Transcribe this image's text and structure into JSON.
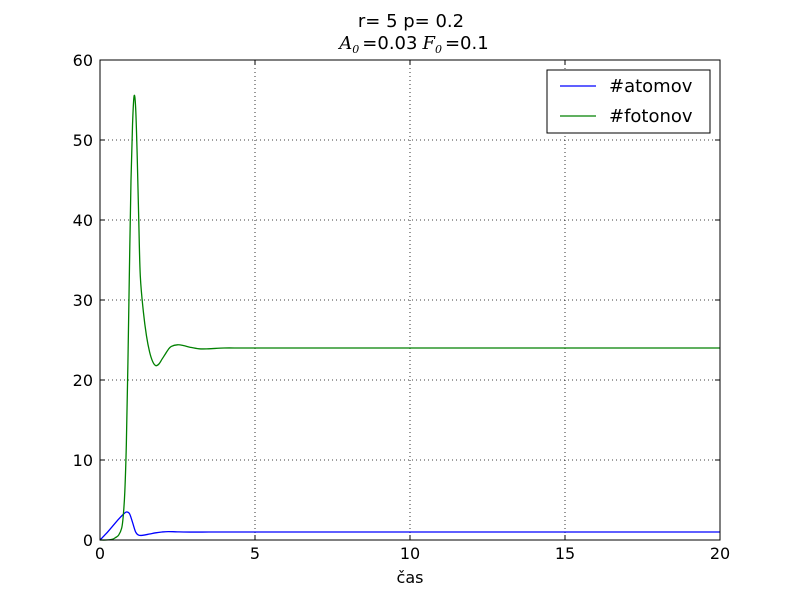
{
  "chart_data": {
    "type": "line",
    "title": "r= 5  p= 0.2",
    "subtitle": {
      "a_symbol": "A",
      "a_subscript": "0",
      "a_value": "=0.03",
      "f_symbol": "F",
      "f_subscript": "0",
      "f_value": "=0.1"
    },
    "xlabel": "čas",
    "ylabel": "",
    "xlim": [
      0,
      20
    ],
    "ylim": [
      0,
      60
    ],
    "xticks": [
      "0",
      "5",
      "10",
      "15",
      "20"
    ],
    "yticks": [
      "0",
      "10",
      "20",
      "30",
      "40",
      "50",
      "60"
    ],
    "grid": true,
    "legend_position": "top-right",
    "series": [
      {
        "name": "#atomov",
        "color": "#0000ff",
        "x": [
          0,
          0.2,
          0.4,
          0.6,
          0.75,
          0.85,
          0.95,
          1.05,
          1.15,
          1.25,
          1.4,
          1.6,
          1.8,
          2.0,
          2.2,
          2.5,
          3.0,
          3.5,
          4.0,
          5.0,
          10.0,
          15.0,
          20.0
        ],
        "y": [
          0.0,
          0.8,
          1.7,
          2.6,
          3.2,
          3.5,
          3.3,
          2.2,
          1.0,
          0.6,
          0.6,
          0.75,
          0.9,
          1.0,
          1.05,
          1.02,
          0.99,
          1.0,
          1.0,
          1.0,
          1.0,
          1.0,
          1.0
        ]
      },
      {
        "name": "#fotonov",
        "color": "#008000",
        "x": [
          0,
          0.2,
          0.4,
          0.5,
          0.6,
          0.7,
          0.75,
          0.8,
          0.85,
          0.9,
          0.95,
          1.0,
          1.05,
          1.1,
          1.15,
          1.2,
          1.25,
          1.3,
          1.4,
          1.5,
          1.6,
          1.7,
          1.8,
          1.9,
          2.0,
          2.1,
          2.2,
          2.3,
          2.5,
          2.7,
          2.9,
          3.2,
          3.5,
          4.0,
          4.5,
          5.0,
          7.0,
          10.0,
          15.0,
          20.0
        ],
        "y": [
          0.0,
          0.0,
          0.1,
          0.3,
          0.6,
          1.5,
          3.0,
          6.0,
          12.0,
          22.0,
          34.0,
          45.0,
          52.0,
          55.5,
          54.0,
          48.0,
          40.0,
          33.0,
          28.5,
          25.5,
          23.5,
          22.3,
          21.8,
          22.0,
          22.6,
          23.2,
          23.8,
          24.2,
          24.4,
          24.3,
          24.1,
          23.9,
          23.9,
          24.0,
          24.0,
          24.0,
          24.0,
          24.0,
          24.0,
          24.0
        ]
      }
    ]
  }
}
